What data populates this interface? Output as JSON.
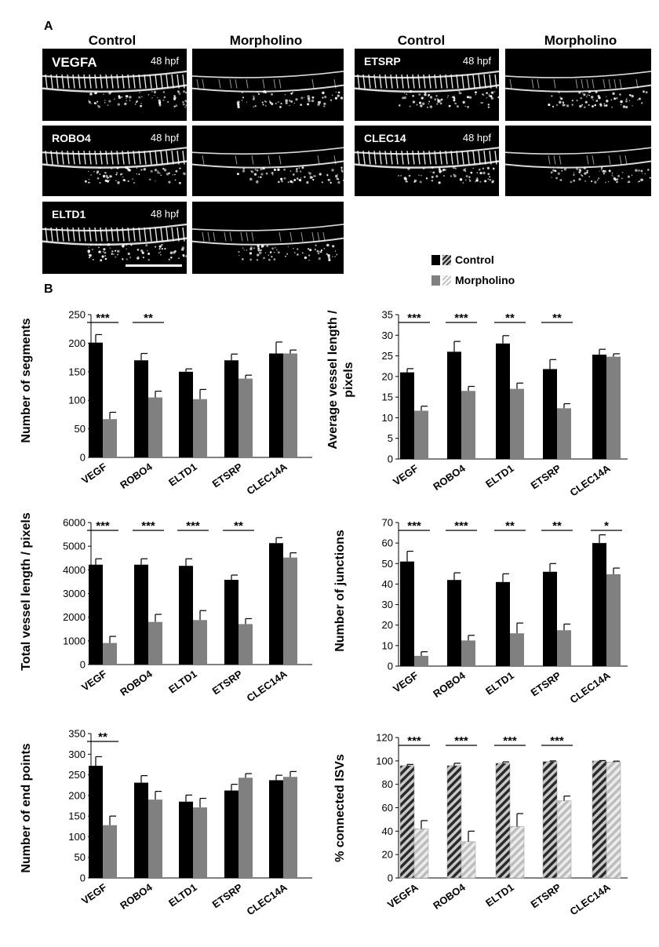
{
  "panel_a": {
    "letter": "A",
    "headers": [
      "Control",
      "Morpholino",
      "Control",
      "Morpholino"
    ],
    "images": [
      {
        "gene": "VEGFA",
        "stage": "48 hpf"
      },
      {
        "gene": "ROBO4",
        "stage": "48 hpf"
      },
      {
        "gene": "ELTD1",
        "stage": "48 hpf"
      },
      {
        "gene": "ETSRP",
        "stage": "48 hpf"
      },
      {
        "gene": "CLEC14",
        "stage": "48 hpf"
      }
    ]
  },
  "panel_b": {
    "letter": "B"
  },
  "legend": {
    "control": "Control",
    "morpholino": "Morpholino"
  },
  "colors": {
    "control": "#000000",
    "morpholino": "#808080",
    "hatch_light": "#c8c8c8",
    "hatch_dark": "#333333"
  },
  "chart_data": [
    {
      "type": "bar",
      "ylabel": "Number of segments",
      "categories": [
        "VEGF",
        "ROBO4",
        "ELTD1",
        "ETSRP",
        "CLEC14A"
      ],
      "ylim": [
        0,
        250
      ],
      "yticks": [
        0,
        50,
        100,
        150,
        200,
        250
      ],
      "series": [
        {
          "name": "Control",
          "values": [
            201,
            170,
            150,
            170,
            182
          ],
          "errors": [
            14,
            12,
            5,
            11,
            20
          ]
        },
        {
          "name": "Morpholino",
          "values": [
            67,
            105,
            102,
            138,
            182
          ],
          "errors": [
            12,
            11,
            17,
            6,
            6
          ]
        }
      ],
      "significance": [
        "***",
        "**",
        "",
        "",
        ""
      ]
    },
    {
      "type": "bar",
      "ylabel": "Average vessel length / pixels",
      "categories": [
        "VEGF",
        "ROBO4",
        "ELTD1",
        "ETSRP",
        "CLEC14A"
      ],
      "ylim": [
        0,
        35
      ],
      "yticks": [
        0,
        5,
        10,
        15,
        20,
        25,
        30,
        35
      ],
      "series": [
        {
          "name": "Control",
          "values": [
            21,
            26,
            28,
            21.8,
            25.3
          ],
          "errors": [
            0.9,
            2.5,
            1.9,
            2.3,
            1.3
          ]
        },
        {
          "name": "Morpholino",
          "values": [
            11.7,
            16.5,
            17,
            12.3,
            24.8
          ],
          "errors": [
            1.1,
            1.1,
            1.4,
            1.1,
            0.7
          ]
        }
      ],
      "significance": [
        "***",
        "***",
        "**",
        "**",
        ""
      ]
    },
    {
      "type": "bar",
      "ylabel": "Total vessel length / pixels",
      "categories": [
        "VEGF",
        "ROBO4",
        "ELTD1",
        "ETSRP",
        "CLEC14A"
      ],
      "ylim": [
        0,
        6000
      ],
      "yticks": [
        0,
        1000,
        2000,
        3000,
        4000,
        5000,
        6000
      ],
      "series": [
        {
          "name": "Control",
          "values": [
            4220,
            4220,
            4170,
            3580,
            5130
          ],
          "errors": [
            250,
            250,
            300,
            200,
            230
          ]
        },
        {
          "name": "Morpholino",
          "values": [
            910,
            1800,
            1880,
            1710,
            4520
          ],
          "errors": [
            280,
            320,
            400,
            230,
            200
          ]
        }
      ],
      "significance": [
        "***",
        "***",
        "***",
        "**",
        ""
      ]
    },
    {
      "type": "bar",
      "ylabel": "Number of junctions",
      "categories": [
        "VEGF",
        "ROBO4",
        "ELTD1",
        "ETSRP",
        "CLEC14A"
      ],
      "ylim": [
        0,
        70
      ],
      "yticks": [
        0,
        10,
        20,
        30,
        40,
        50,
        60,
        70
      ],
      "series": [
        {
          "name": "Control",
          "values": [
            51,
            42,
            41,
            46,
            60
          ],
          "errors": [
            5,
            3.5,
            4,
            4,
            4
          ]
        },
        {
          "name": "Morpholino",
          "values": [
            5,
            12.5,
            16,
            17.5,
            44.8
          ],
          "errors": [
            2,
            2.5,
            5,
            3,
            3
          ]
        }
      ],
      "significance": [
        "***",
        "***",
        "**",
        "**",
        "*"
      ]
    },
    {
      "type": "bar",
      "ylabel": "Number of end points",
      "categories": [
        "VEGF",
        "ROBO4",
        "ELTD1",
        "ETSRP",
        "CLEC14A"
      ],
      "ylim": [
        0,
        350
      ],
      "yticks": [
        0,
        50,
        100,
        150,
        200,
        250,
        300,
        350
      ],
      "series": [
        {
          "name": "Control",
          "values": [
            272,
            231,
            185,
            212,
            237
          ],
          "errors": [
            22,
            17,
            16,
            15,
            12
          ]
        },
        {
          "name": "Morpholino",
          "values": [
            128,
            190,
            171,
            243,
            245
          ],
          "errors": [
            22,
            20,
            22,
            10,
            13
          ]
        }
      ],
      "significance": [
        "**",
        "",
        "",
        "",
        ""
      ]
    },
    {
      "type": "bar",
      "ylabel": "% connected ISVs",
      "categories": [
        "VEGFA",
        "ROBO4",
        "ELTD1",
        "ETSRP",
        "CLEC14A"
      ],
      "ylim": [
        0,
        120
      ],
      "yticks": [
        0,
        20,
        40,
        60,
        80,
        100,
        120
      ],
      "hatched": true,
      "series": [
        {
          "name": "Control",
          "values": [
            96,
            96,
            98,
            99.5,
            100
          ],
          "errors": [
            1,
            2,
            1.2,
            0.5,
            0.3
          ]
        },
        {
          "name": "Morpholino",
          "values": [
            42,
            31,
            44,
            66,
            99
          ],
          "errors": [
            7,
            9,
            11,
            4,
            0.8
          ]
        }
      ],
      "significance": [
        "***",
        "***",
        "***",
        "***",
        ""
      ]
    }
  ]
}
